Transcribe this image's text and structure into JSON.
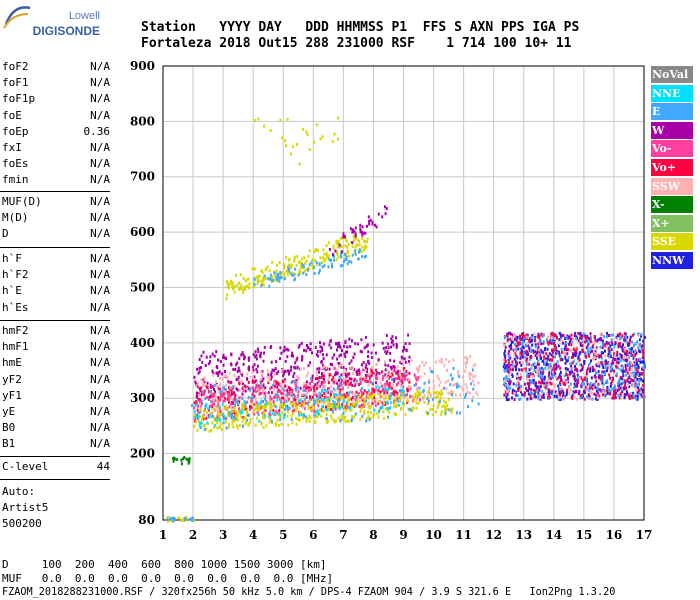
{
  "logo": {
    "top": "Lowell",
    "main": "DIGISONDE"
  },
  "header": {
    "row1": "Station   YYYY DAY   DDD HHMMSS P1  FFS S AXN PPS IGA PS",
    "row2": "Fortaleza 2018 Out15 288 231000 RSF    1 714 100 10+ 11"
  },
  "params_group1": [
    {
      "name": "foF2",
      "value": "N/A"
    },
    {
      "name": "foF1",
      "value": "N/A"
    },
    {
      "name": "foF1p",
      "value": "N/A"
    },
    {
      "name": "foE",
      "value": "N/A"
    },
    {
      "name": "foEp",
      "value": "0.36"
    },
    {
      "name": "fxI",
      "value": "N/A"
    },
    {
      "name": "foEs",
      "value": "N/A"
    },
    {
      "name": "fmin",
      "value": "N/A"
    }
  ],
  "params_group2": [
    {
      "name": "MUF(D)",
      "value": "N/A"
    },
    {
      "name": "M(D)",
      "value": "N/A"
    },
    {
      "name": "D",
      "value": "N/A"
    }
  ],
  "params_group3": [
    {
      "name": "h`F",
      "value": "N/A"
    },
    {
      "name": "h`F2",
      "value": "N/A"
    },
    {
      "name": "h`E",
      "value": "N/A"
    },
    {
      "name": "h`Es",
      "value": "N/A"
    }
  ],
  "params_group4": [
    {
      "name": "hmF2",
      "value": "N/A"
    },
    {
      "name": "hmF1",
      "value": "N/A"
    },
    {
      "name": "hmE",
      "value": "N/A"
    },
    {
      "name": "yF2",
      "value": "N/A"
    },
    {
      "name": "yF1",
      "value": "N/A"
    },
    {
      "name": "yE",
      "value": "N/A"
    },
    {
      "name": "B0",
      "value": "N/A"
    },
    {
      "name": "B1",
      "value": "N/A"
    }
  ],
  "clevel": {
    "name": "C-level",
    "value": "44"
  },
  "autoscale": {
    "line1": "Auto:",
    "line2": "Artist5",
    "line3": "500200"
  },
  "bottom": {
    "row1": "D     100  200  400  600  800 1000 1500 3000 [km]",
    "row2": "MUF   0.0  0.0  0.0  0.0  0.0  0.0  0.0  0.0 [MHz]",
    "row3": "FZAOM_2018288231000.RSF / 320fx256h 50 kHz 5.0 km / DPS-4 FZAOM 904 / 3.9 S 321.6 E   Ion2Png 1.3.20"
  },
  "legend": [
    {
      "label": "NoVal",
      "color": "#888888"
    },
    {
      "label": "NNE",
      "color": "#00e0ff"
    },
    {
      "label": "E",
      "color": "#40a8ff"
    },
    {
      "label": "W",
      "color": "#a800a8"
    },
    {
      "label": "Vo-",
      "color": "#ff40a0"
    },
    {
      "label": "Vo+",
      "color": "#ff0040"
    },
    {
      "label": "SSW",
      "color": "#ffb0b0"
    },
    {
      "label": "X-",
      "color": "#008000"
    },
    {
      "label": "X+",
      "color": "#80c060"
    },
    {
      "label": "SSE",
      "color": "#d8d800"
    },
    {
      "label": "NNW",
      "color": "#2020e0"
    }
  ],
  "chart_data": {
    "type": "scatter",
    "x_ticks": [
      "1",
      "2",
      "3",
      "4",
      "5",
      "6",
      "7",
      "8",
      "9",
      "10",
      "11",
      "12",
      "13",
      "14",
      "15",
      "16",
      "17"
    ],
    "y_ticks": [
      "80",
      "200",
      "300",
      "400",
      "500",
      "600",
      "700",
      "800",
      "900"
    ],
    "xlim": [
      1,
      17
    ],
    "ylim": [
      80,
      900
    ],
    "grid": true,
    "legend_position": "right",
    "series_note": "ionogram echoes, height (km) vs frequency (MHz)",
    "clusters": [
      {
        "name": "F-layer W",
        "color": "#a800a8",
        "x_range": [
          2.0,
          9.2
        ],
        "y_range": [
          300,
          420
        ],
        "count": 450
      },
      {
        "name": "F-layer Vo+",
        "color": "#ff0040",
        "x_range": [
          2.0,
          9.2
        ],
        "y_range": [
          260,
          360
        ],
        "count": 350
      },
      {
        "name": "F-layer Vo-",
        "color": "#ff40a0",
        "x_range": [
          2.0,
          9.6
        ],
        "y_range": [
          260,
          350
        ],
        "count": 250
      },
      {
        "name": "F-layer SSW",
        "color": "#ffb0b0",
        "x_range": [
          2.0,
          11.5
        ],
        "y_range": [
          270,
          380
        ],
        "count": 300
      },
      {
        "name": "F-layer SSE",
        "color": "#d8d800",
        "x_range": [
          2.0,
          10.6
        ],
        "y_range": [
          240,
          320
        ],
        "count": 400
      },
      {
        "name": "F-layer E",
        "color": "#40a8ff",
        "x_range": [
          1.8,
          11.5
        ],
        "y_range": [
          240,
          360
        ],
        "count": 150
      },
      {
        "name": "F-layer NNE",
        "color": "#00e0ff",
        "x_range": [
          2.0,
          9.0
        ],
        "y_range": [
          250,
          330
        ],
        "count": 100
      },
      {
        "name": "Spread-F NNW",
        "color": "#2020e0",
        "x_range": [
          12.3,
          17.0
        ],
        "y_range": [
          300,
          420
        ],
        "count": 500
      },
      {
        "name": "Spread-F W",
        "color": "#a800a8",
        "x_range": [
          12.3,
          17.0
        ],
        "y_range": [
          300,
          420
        ],
        "count": 300
      },
      {
        "name": "Spread-F E",
        "color": "#40a8ff",
        "x_range": [
          12.3,
          17.0
        ],
        "y_range": [
          300,
          420
        ],
        "count": 250
      },
      {
        "name": "Spread-F Vo+",
        "color": "#ff0040",
        "x_range": [
          12.3,
          17.0
        ],
        "y_range": [
          300,
          420
        ],
        "count": 200
      },
      {
        "name": "Spread-F SSW",
        "color": "#ffb0b0",
        "x_range": [
          12.3,
          17.0
        ],
        "y_range": [
          300,
          420
        ],
        "count": 120
      },
      {
        "name": "2-hop SSE",
        "color": "#d8d800",
        "x_range": [
          3.0,
          7.8
        ],
        "y_range": [
          480,
          610
        ],
        "count": 220
      },
      {
        "name": "2-hop E",
        "color": "#40a8ff",
        "x_range": [
          4.0,
          7.8
        ],
        "y_range": [
          495,
          580
        ],
        "count": 80
      },
      {
        "name": "2-hop W",
        "color": "#a800a8",
        "x_range": [
          6.5,
          8.5
        ],
        "y_range": [
          550,
          660
        ],
        "count": 40
      },
      {
        "name": "3-hop SSE",
        "color": "#d8d800",
        "x_range": [
          4.0,
          6.8
        ],
        "y_range": [
          720,
          810
        ],
        "count": 25
      },
      {
        "name": "low echo SSE",
        "color": "#d8d800",
        "x_range": [
          1.1,
          2.0
        ],
        "y_range": [
          80,
          88
        ],
        "count": 25
      },
      {
        "name": "low echo E",
        "color": "#40a8ff",
        "x_range": [
          1.1,
          2.0
        ],
        "y_range": [
          80,
          88
        ],
        "count": 15
      },
      {
        "name": "low echo X-",
        "color": "#008000",
        "x_range": [
          1.3,
          2.0
        ],
        "y_range": [
          184,
          196
        ],
        "count": 15
      }
    ]
  }
}
